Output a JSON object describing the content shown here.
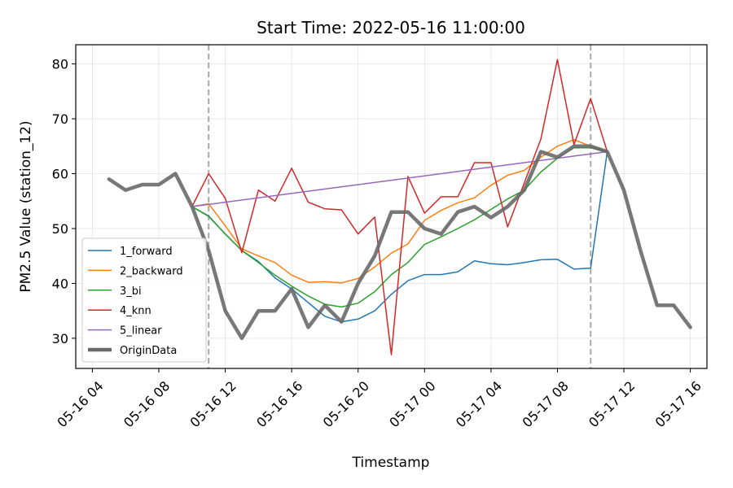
{
  "chart_data": {
    "type": "line",
    "title": "Start Time: 2022-05-16 11:00:00",
    "xlabel": "Timestamp",
    "ylabel": "PM2.5 Value (station_12)",
    "x_ticks": [
      "05-16 04",
      "05-16 08",
      "05-16 12",
      "05-16 16",
      "05-16 20",
      "05-17 00",
      "05-17 04",
      "05-17 08",
      "05-17 12",
      "05-17 16"
    ],
    "y_ticks": [
      30,
      40,
      50,
      60,
      70,
      80
    ],
    "xlim": [
      "2022-05-16 03:00",
      "2022-05-17 17:00"
    ],
    "ylim": [
      24.5,
      83.5
    ],
    "grid": true,
    "legend_position": "lower-left",
    "vlines": [
      "2022-05-16 11:00",
      "2022-05-17 10:00"
    ],
    "series": [
      {
        "name": "1_forward",
        "color": "#1f77b4",
        "x": [
          "2022-05-16 10:00",
          "2022-05-16 11:00",
          "2022-05-16 12:00",
          "2022-05-16 13:00",
          "2022-05-16 14:00",
          "2022-05-16 15:00",
          "2022-05-16 16:00",
          "2022-05-16 17:00",
          "2022-05-16 18:00",
          "2022-05-16 19:00",
          "2022-05-16 20:00",
          "2022-05-16 21:00",
          "2022-05-16 22:00",
          "2022-05-16 23:00",
          "2022-05-17 00:00",
          "2022-05-17 01:00",
          "2022-05-17 02:00",
          "2022-05-17 03:00",
          "2022-05-17 04:00",
          "2022-05-17 05:00",
          "2022-05-17 06:00",
          "2022-05-17 07:00",
          "2022-05-17 08:00",
          "2022-05-17 09:00",
          "2022-05-17 10:00",
          "2022-05-17 11:00"
        ],
        "values": [
          54,
          52.3,
          49,
          46,
          44,
          41,
          39,
          36.5,
          34,
          33,
          33.5,
          35,
          38,
          40.5,
          41.6,
          41.6,
          42.1,
          44.1,
          43.6,
          43.4,
          43.8,
          44.3,
          44.4,
          42.6,
          42.8,
          64
        ]
      },
      {
        "name": "2_backward",
        "color": "#ff7f0e",
        "x": [
          "2022-05-16 10:00",
          "2022-05-16 11:00",
          "2022-05-16 12:00",
          "2022-05-16 13:00",
          "2022-05-16 14:00",
          "2022-05-16 15:00",
          "2022-05-16 16:00",
          "2022-05-16 17:00",
          "2022-05-16 18:00",
          "2022-05-16 19:00",
          "2022-05-16 20:00",
          "2022-05-16 21:00",
          "2022-05-16 22:00",
          "2022-05-16 23:00",
          "2022-05-17 00:00",
          "2022-05-17 01:00",
          "2022-05-17 02:00",
          "2022-05-17 03:00",
          "2022-05-17 04:00",
          "2022-05-17 05:00",
          "2022-05-17 06:00",
          "2022-05-17 07:00",
          "2022-05-17 08:00",
          "2022-05-17 09:00",
          "2022-05-17 10:00",
          "2022-05-17 11:00"
        ],
        "values": [
          54,
          54.5,
          50.5,
          46.3,
          45,
          43.8,
          41.5,
          40.2,
          40.3,
          40.1,
          40.9,
          43,
          45.5,
          47.2,
          51.5,
          53.3,
          54.7,
          55.6,
          57.9,
          59.7,
          60.6,
          63,
          65,
          66.2,
          65,
          64
        ]
      },
      {
        "name": "3_bi",
        "color": "#2ca02c",
        "x": [
          "2022-05-16 10:00",
          "2022-05-16 11:00",
          "2022-05-16 12:00",
          "2022-05-16 13:00",
          "2022-05-16 14:00",
          "2022-05-16 15:00",
          "2022-05-16 16:00",
          "2022-05-16 17:00",
          "2022-05-16 18:00",
          "2022-05-16 19:00",
          "2022-05-16 20:00",
          "2022-05-16 21:00",
          "2022-05-16 22:00",
          "2022-05-16 23:00",
          "2022-05-17 00:00",
          "2022-05-17 01:00",
          "2022-05-17 02:00",
          "2022-05-17 03:00",
          "2022-05-17 04:00",
          "2022-05-17 05:00",
          "2022-05-17 06:00",
          "2022-05-17 07:00",
          "2022-05-17 08:00",
          "2022-05-17 09:00",
          "2022-05-17 10:00",
          "2022-05-17 11:00"
        ],
        "values": [
          54,
          52.2,
          49,
          46,
          43.8,
          41.5,
          39.5,
          37.7,
          36.2,
          35.7,
          36.4,
          38.5,
          41.6,
          43.8,
          47.1,
          48.5,
          50,
          51.6,
          53.5,
          55.4,
          57,
          60.3,
          62.8,
          64.7,
          64.7,
          64
        ]
      },
      {
        "name": "4_knn",
        "color": "#d62728",
        "x": [
          "2022-05-16 10:00",
          "2022-05-16 11:00",
          "2022-05-16 12:00",
          "2022-05-16 13:00",
          "2022-05-16 14:00",
          "2022-05-16 15:00",
          "2022-05-16 16:00",
          "2022-05-16 17:00",
          "2022-05-16 18:00",
          "2022-05-16 19:00",
          "2022-05-16 20:00",
          "2022-05-16 21:00",
          "2022-05-16 22:00",
          "2022-05-16 23:00",
          "2022-05-17 00:00",
          "2022-05-17 01:00",
          "2022-05-17 02:00",
          "2022-05-17 03:00",
          "2022-05-17 04:00",
          "2022-05-17 05:00",
          "2022-05-17 06:00",
          "2022-05-17 07:00",
          "2022-05-17 08:00",
          "2022-05-17 09:00",
          "2022-05-17 10:00",
          "2022-05-17 11:00"
        ],
        "values": [
          54,
          60,
          55.5,
          45.6,
          57,
          55,
          61,
          54.8,
          53.6,
          53.4,
          49,
          52.1,
          27,
          59.5,
          52.8,
          55.8,
          55.8,
          62,
          62,
          50.3,
          58.3,
          66.3,
          80.8,
          65.3,
          73.7,
          64
        ]
      },
      {
        "name": "5_linear",
        "color": "#9467bd",
        "x": [
          "2022-05-16 10:00",
          "2022-05-17 11:00"
        ],
        "values": [
          54,
          64
        ]
      },
      {
        "name": "OriginData",
        "color": "#696969",
        "x": [
          "2022-05-16 05:00",
          "2022-05-16 06:00",
          "2022-05-16 07:00",
          "2022-05-16 08:00",
          "2022-05-16 09:00",
          "2022-05-16 10:00",
          "2022-05-16 11:00",
          "2022-05-16 12:00",
          "2022-05-16 13:00",
          "2022-05-16 14:00",
          "2022-05-16 15:00",
          "2022-05-16 16:00",
          "2022-05-16 17:00",
          "2022-05-16 18:00",
          "2022-05-16 19:00",
          "2022-05-16 20:00",
          "2022-05-16 21:00",
          "2022-05-16 22:00",
          "2022-05-16 23:00",
          "2022-05-17 00:00",
          "2022-05-17 01:00",
          "2022-05-17 02:00",
          "2022-05-17 03:00",
          "2022-05-17 04:00",
          "2022-05-17 05:00",
          "2022-05-17 06:00",
          "2022-05-17 07:00",
          "2022-05-17 08:00",
          "2022-05-17 09:00",
          "2022-05-17 10:00",
          "2022-05-17 11:00",
          "2022-05-17 12:00",
          "2022-05-17 13:00",
          "2022-05-17 14:00",
          "2022-05-17 15:00",
          "2022-05-17 16:00"
        ],
        "values": [
          59,
          57,
          58,
          58,
          60,
          54,
          46,
          35,
          30,
          35,
          35,
          39,
          32,
          36,
          33,
          40,
          45,
          53,
          53,
          50,
          49,
          53,
          54,
          52,
          54,
          57,
          64,
          63,
          65,
          65,
          64,
          57,
          46,
          36,
          36,
          32
        ]
      }
    ]
  }
}
